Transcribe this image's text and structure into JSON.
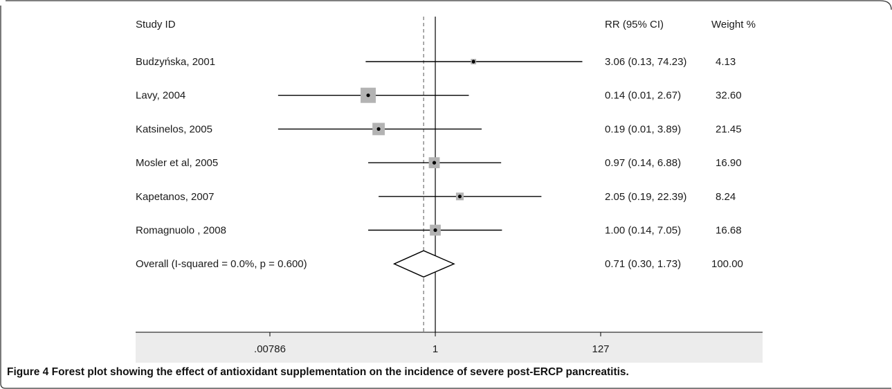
{
  "colors": {
    "box": "#b3b3b3",
    "line": "#000000",
    "axis_band": "#ececec",
    "frame": "#333333"
  },
  "chart_data": {
    "type": "forest",
    "scale": "log",
    "headers": {
      "study": "Study ID",
      "rr": "RR (95% CI)",
      "weight": "Weight %"
    },
    "axis_ticks": [
      {
        "value": 0.00786,
        "label": ".00786"
      },
      {
        "value": 1,
        "label": "1"
      },
      {
        "value": 127,
        "label": "127"
      }
    ],
    "null_value": 1,
    "studies": [
      {
        "label": "Budzyńska, 2001",
        "rr": 3.06,
        "lo": 0.13,
        "hi": 74.23,
        "rr_text": "3.06 (0.13, 74.23)",
        "weight": 4.13,
        "weight_text": "4.13"
      },
      {
        "label": "Lavy, 2004",
        "rr": 0.14,
        "lo": 0.01,
        "hi": 2.67,
        "rr_text": "0.14 (0.01, 2.67)",
        "weight": 32.6,
        "weight_text": "32.60"
      },
      {
        "label": "Katsinelos, 2005",
        "rr": 0.19,
        "lo": 0.01,
        "hi": 3.89,
        "rr_text": "0.19 (0.01, 3.89)",
        "weight": 21.45,
        "weight_text": "21.45"
      },
      {
        "label": "Mosler et al, 2005",
        "rr": 0.97,
        "lo": 0.14,
        "hi": 6.88,
        "rr_text": "0.97 (0.14, 6.88)",
        "weight": 16.9,
        "weight_text": "16.90"
      },
      {
        "label": "Kapetanos, 2007",
        "rr": 2.05,
        "lo": 0.19,
        "hi": 22.39,
        "rr_text": "2.05 (0.19, 22.39)",
        "weight": 8.24,
        "weight_text": "8.24"
      },
      {
        "label": "Romagnuolo , 2008",
        "rr": 1.0,
        "lo": 0.14,
        "hi": 7.05,
        "rr_text": "1.00 (0.14, 7.05)",
        "weight": 16.68,
        "weight_text": "16.68"
      }
    ],
    "overall": {
      "label": "Overall  (I-squared = 0.0%, p = 0.600)",
      "rr": 0.71,
      "lo": 0.3,
      "hi": 1.73,
      "rr_text": "0.71 (0.30, 1.73)",
      "weight_text": "100.00"
    }
  },
  "caption": {
    "prefix": "Figure 4",
    "text": "Forest plot showing the effect of antioxidant supplementation on the incidence of severe post-ERCP pancreatitis."
  }
}
